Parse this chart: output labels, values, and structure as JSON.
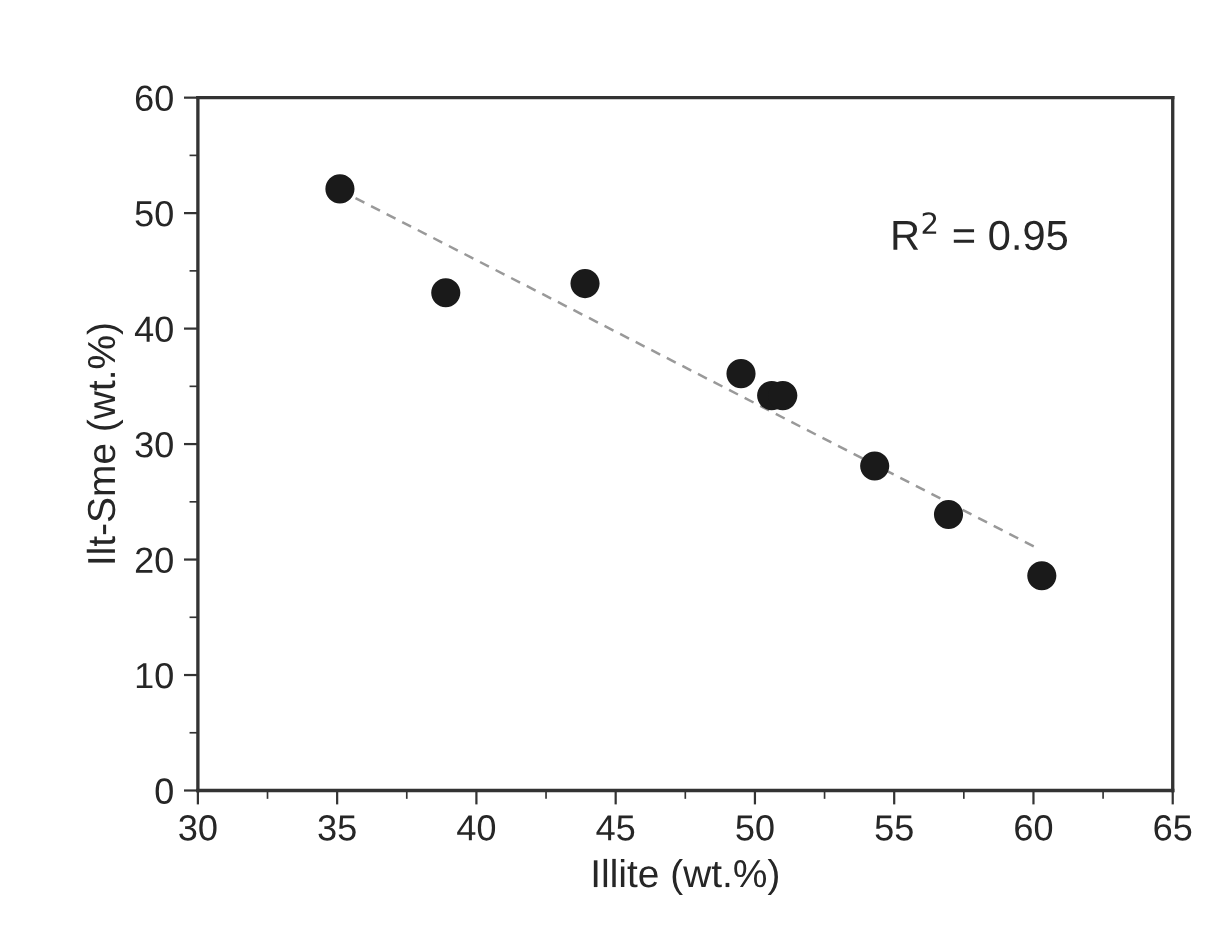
{
  "chart_data": {
    "type": "scatter",
    "xlabel": "Illite (wt.%)",
    "ylabel": "Ilt-Sme (wt.%)",
    "x": [
      35.1,
      38.9,
      43.9,
      49.5,
      50.6,
      51.0,
      54.3,
      56.95,
      60.3
    ],
    "series": [
      {
        "color": "#1a1a1a",
        "marker": "circle",
        "values": [
          52.1,
          43.1,
          43.9,
          36.1,
          34.2,
          34.2,
          28.1,
          23.9,
          18.6
        ]
      },
      {
        "type": "line",
        "color": "#999999",
        "line_style": "dashed",
        "marker": "none",
        "x": [
          35.1,
          60.2
        ],
        "values": [
          52.0,
          20.9
        ]
      }
    ],
    "annotations": [
      "R$^{2}$ = 0.95"
    ],
    "xlim": [
      30,
      65
    ],
    "xticks": [
      30,
      35,
      40,
      45,
      50,
      55,
      60,
      65
    ],
    "ylim": [
      0,
      60
    ],
    "yticks": [
      0,
      10,
      20,
      30,
      40,
      50,
      60
    ],
    "grid": false,
    "legend": false
  }
}
